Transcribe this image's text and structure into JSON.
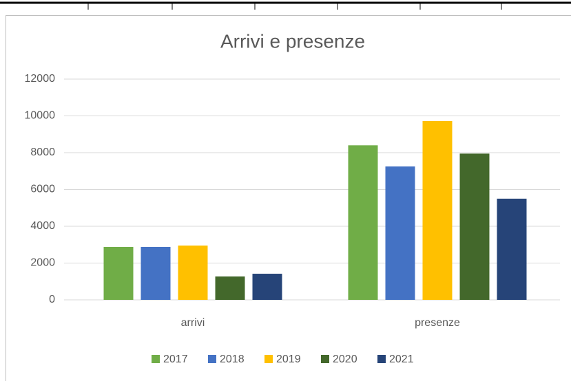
{
  "chart_data": {
    "type": "bar",
    "title": "Arrivi e presenze",
    "categories": [
      "arrivi",
      "presenze"
    ],
    "series": [
      {
        "name": "2017",
        "color": "#70ad47",
        "values": [
          2880,
          8400
        ]
      },
      {
        "name": "2018",
        "color": "#4472c4",
        "values": [
          2880,
          7250
        ]
      },
      {
        "name": "2019",
        "color": "#ffc000",
        "values": [
          2950,
          9720
        ]
      },
      {
        "name": "2020",
        "color": "#43682b",
        "values": [
          1270,
          7950
        ]
      },
      {
        "name": "2021",
        "color": "#264478",
        "values": [
          1420,
          5500
        ]
      }
    ],
    "ylim": [
      0,
      12000
    ],
    "yticks": [
      0,
      2000,
      4000,
      6000,
      8000,
      10000,
      12000
    ],
    "grid": true,
    "legend": "bottom"
  }
}
